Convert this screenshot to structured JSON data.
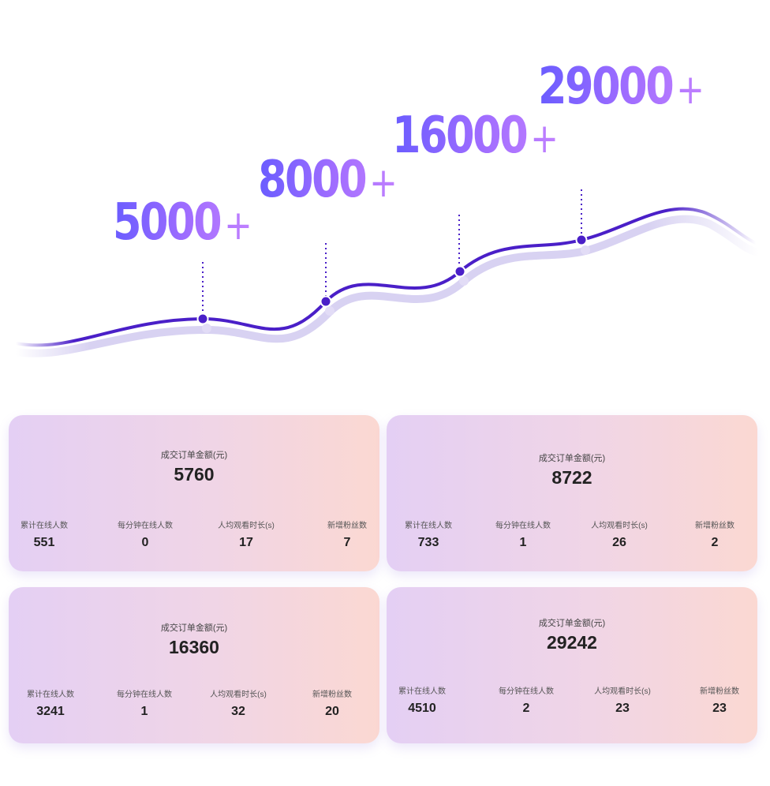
{
  "milestones": [
    {
      "number": "5000",
      "plus": "+"
    },
    {
      "number": "8000",
      "plus": "+"
    },
    {
      "number": "16000",
      "plus": "+"
    },
    {
      "number": "29000",
      "plus": "+"
    }
  ],
  "colors": {
    "curve": "#4a1fc8",
    "curve_shadow": "#d8d2f2",
    "accent_start": "#6a5cff",
    "accent_end": "#c080ff",
    "card_start": "#e4cff4",
    "card_end": "#fbd8d2"
  },
  "cards": [
    {
      "title": "成交订单金额(元)",
      "amount": "5760",
      "stats": [
        {
          "label": "累计在线人数",
          "value": "551"
        },
        {
          "label": "每分钟在线人数",
          "value": "0"
        },
        {
          "label": "人均观看时长(s)",
          "value": "17"
        },
        {
          "label": "新增粉丝数",
          "value": "7"
        }
      ]
    },
    {
      "title": "成交订单金额(元)",
      "amount": "8722",
      "stats": [
        {
          "label": "累计在线人数",
          "value": "733"
        },
        {
          "label": "每分钟在线人数",
          "value": "1"
        },
        {
          "label": "人均观看时长(s)",
          "value": "26"
        },
        {
          "label": "新增粉丝数",
          "value": "2"
        }
      ]
    },
    {
      "title": "成交订单金额(元)",
      "amount": "16360",
      "stats": [
        {
          "label": "累计在线人数",
          "value": "3241"
        },
        {
          "label": "每分钟在线人数",
          "value": "1"
        },
        {
          "label": "人均观看时长(s)",
          "value": "32"
        },
        {
          "label": "新增粉丝数",
          "value": "20"
        }
      ]
    },
    {
      "title": "成交订单金额(元)",
      "amount": "29242",
      "stats": [
        {
          "label": "累计在线人数",
          "value": "4510"
        },
        {
          "label": "每分钟在线人数",
          "value": "2"
        },
        {
          "label": "人均观看时长(s)",
          "value": "23"
        },
        {
          "label": "新增粉丝数",
          "value": "23"
        }
      ]
    }
  ]
}
